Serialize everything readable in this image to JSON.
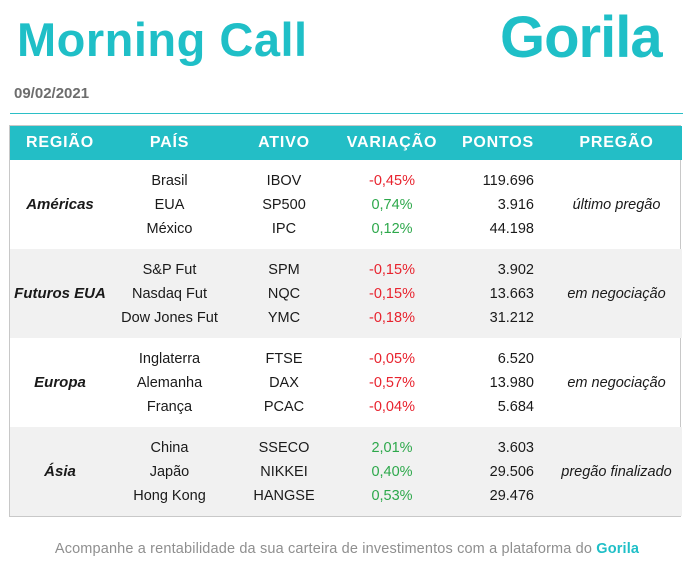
{
  "header": {
    "title": "Morning Call",
    "logo": "Gorila",
    "date": "09/02/2021"
  },
  "table": {
    "columns": {
      "regiao": "REGIÃO",
      "pais": "PAÍS",
      "ativo": "ATIVO",
      "variacao": "VARIAÇÃO",
      "pontos": "PONTOS",
      "pregao": "PREGÃO"
    },
    "groups": [
      {
        "region": "Américas",
        "session": "último pregão",
        "rows": [
          {
            "country": "Brasil",
            "asset": "IBOV",
            "change": "-0,45%",
            "trend": "negative",
            "points": "119.696"
          },
          {
            "country": "EUA",
            "asset": "SP500",
            "change": "0,74%",
            "trend": "positive",
            "points": "3.916"
          },
          {
            "country": "México",
            "asset": "IPC",
            "change": "0,12%",
            "trend": "positive",
            "points": "44.198"
          }
        ]
      },
      {
        "region": "Futuros EUA",
        "session": "em negociação",
        "rows": [
          {
            "country": "S&P Fut",
            "asset": "SPM",
            "change": "-0,15%",
            "trend": "negative",
            "points": "3.902"
          },
          {
            "country": "Nasdaq Fut",
            "asset": "NQC",
            "change": "-0,15%",
            "trend": "negative",
            "points": "13.663"
          },
          {
            "country": "Dow Jones Fut",
            "asset": "YMC",
            "change": "-0,18%",
            "trend": "negative",
            "points": "31.212"
          }
        ]
      },
      {
        "region": "Europa",
        "session": "em negociação",
        "rows": [
          {
            "country": "Inglaterra",
            "asset": "FTSE",
            "change": "-0,05%",
            "trend": "negative",
            "points": "6.520"
          },
          {
            "country": "Alemanha",
            "asset": "DAX",
            "change": "-0,57%",
            "trend": "negative",
            "points": "13.980"
          },
          {
            "country": "França",
            "asset": "PCAC",
            "change": "-0,04%",
            "trend": "negative",
            "points": "5.684"
          }
        ]
      },
      {
        "region": "Ásia",
        "session": "pregão finalizado",
        "rows": [
          {
            "country": "China",
            "asset": "SSECO",
            "change": "2,01%",
            "trend": "positive",
            "points": "3.603"
          },
          {
            "country": "Japão",
            "asset": "NIKKEI",
            "change": "0,40%",
            "trend": "positive",
            "points": "29.506"
          },
          {
            "country": "Hong Kong",
            "asset": "HANGSE",
            "change": "0,53%",
            "trend": "positive",
            "points": "29.476"
          }
        ]
      }
    ]
  },
  "footer": {
    "text": "Acompanhe a rentabilidade da sua carteira de investimentos com a plataforma do",
    "brand": "Gorila"
  },
  "colors": {
    "accent": "#1fbfc7",
    "header_bg": "#23bec6",
    "negative": "#e8232e",
    "positive": "#2da84b",
    "band_alt": "#f1f1f1"
  }
}
